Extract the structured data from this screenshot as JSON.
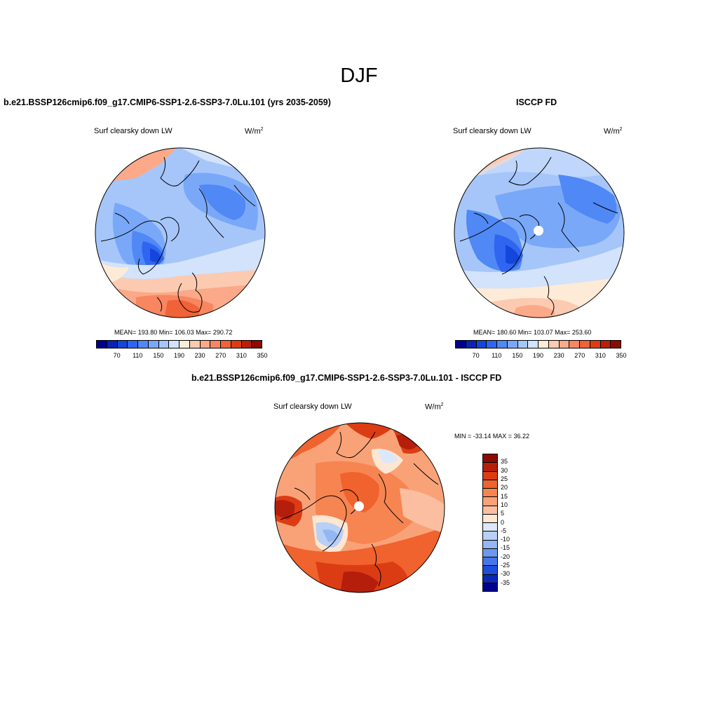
{
  "title": "DJF",
  "units": "W/m",
  "units_sup": "2",
  "panels": {
    "model": {
      "title": "b.e21.BSSP126cmip6.f09_g17.CMIP6-SSP1-2.6-SSP3-7.0Lu.101 (yrs 2035-2059)",
      "variable": "Surf clearsky down LW",
      "stats": "MEAN= 193.80   Min= 106.03   Max= 290.72"
    },
    "obs": {
      "title": "ISCCP FD",
      "variable": "Surf clearsky down LW",
      "stats": "MEAN= 180.60   Min= 103.07   Max= 253.60"
    },
    "diff": {
      "title": "b.e21.BSSP126cmip6.f09_g17.CMIP6-SSP1-2.6-SSP3-7.0Lu.101 - ISCCP FD",
      "variable": "Surf clearsky down LW",
      "stats": "MIN = -33.14 MAX =  36.22"
    }
  },
  "colorbar_abs": {
    "colors": [
      "#00008c",
      "#0a23b4",
      "#1446dc",
      "#2f65f0",
      "#5088f5",
      "#7aa8f8",
      "#a6c6fa",
      "#d2e3fb",
      "#fdebd8",
      "#fccab0",
      "#fba988",
      "#f88660",
      "#f06238",
      "#dc3c14",
      "#bb1f08",
      "#8c0a00"
    ],
    "ticks": [
      "70",
      "110",
      "150",
      "190",
      "230",
      "270",
      "310",
      "350"
    ]
  },
  "colorbar_diff": {
    "colors": [
      "#8c0a00",
      "#b51e0a",
      "#dc3c14",
      "#f0622e",
      "#f68552",
      "#f9a278",
      "#fbbea0",
      "#fde7d2",
      "#dce8fa",
      "#b8cff6",
      "#94b6f2",
      "#6e98ee",
      "#4676e8",
      "#1e4edc",
      "#0a28b4",
      "#00008c"
    ],
    "ticks": [
      "35",
      "30",
      "25",
      "20",
      "15",
      "10",
      "5",
      "0",
      "-5",
      "-10",
      "-15",
      "-20",
      "-25",
      "-30",
      "-35"
    ]
  }
}
